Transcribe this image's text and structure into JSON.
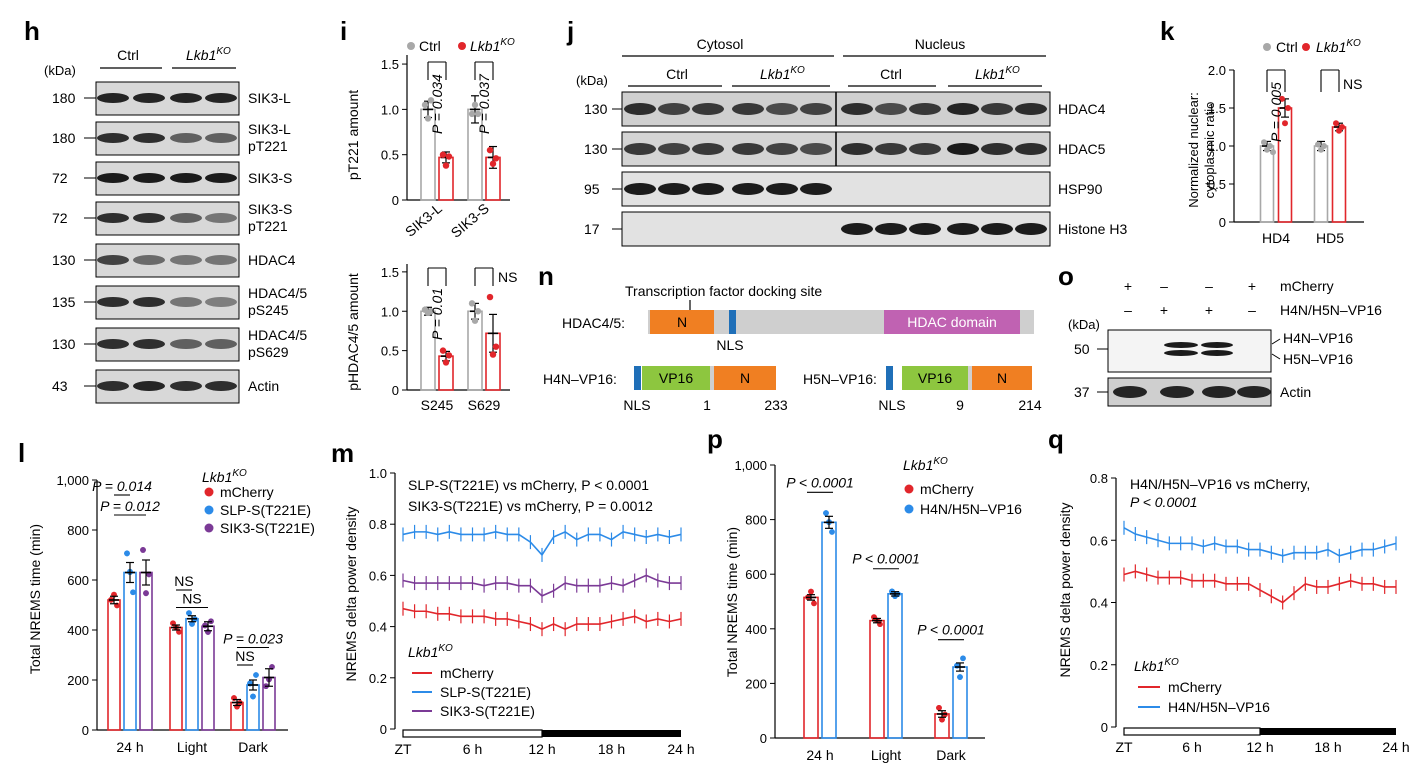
{
  "colors": {
    "red": "#e1262b",
    "blue": "#2c8be8",
    "purple": "#7b3a96",
    "grey": "#a8a8a8",
    "orange": "#f07f22",
    "green": "#8dc63f",
    "magenta": "#c062b2",
    "nls": "#1f6fb8",
    "domain_grey": "#cfcfcf"
  },
  "labels": {
    "h": "h",
    "i": "i",
    "j": "j",
    "k": "k",
    "l": "l",
    "m": "m",
    "n": "n",
    "o": "o",
    "p": "p",
    "q": "q"
  },
  "blot_h": {
    "kda": "(kDa)",
    "ctrl": "Ctrl",
    "ko": "Lkb1",
    "ko_sup": "KO",
    "rows": [
      {
        "mw": "180",
        "label": "SIK3-L",
        "label2": ""
      },
      {
        "mw": "180",
        "label": "SIK3-L",
        "label2": "pT221"
      },
      {
        "mw": "72",
        "label": "SIK3-S",
        "label2": ""
      },
      {
        "mw": "72",
        "label": "SIK3-S",
        "label2": "pT221"
      },
      {
        "mw": "130",
        "label": "HDAC4",
        "label2": ""
      },
      {
        "mw": "135",
        "label": "HDAC4/5",
        "label2": "pS245"
      },
      {
        "mw": "130",
        "label": "HDAC4/5",
        "label2": "pS629"
      },
      {
        "mw": "43",
        "label": "Actin",
        "label2": ""
      }
    ]
  },
  "panel_i": {
    "legend": {
      "ctrl": "Ctrl",
      "ko": "Lkb1",
      "ko_sup": "KO"
    },
    "top": {
      "ylabel": "pT221 amount",
      "yticks": [
        "0",
        "0.5",
        "1.0",
        "1.5"
      ],
      "categories": [
        "SIK3-L",
        "SIK3-S"
      ],
      "ctrl": [
        1.0,
        1.0
      ],
      "ko": [
        0.47,
        0.47
      ],
      "p": [
        "P = 0.034",
        "P = 0.037"
      ]
    },
    "bottom": {
      "ylabel": "pHDAC4/5 amount",
      "yticks": [
        "0",
        "0.5",
        "1.0",
        "1.5"
      ],
      "categories": [
        "S245",
        "S629"
      ],
      "ctrl": [
        1.0,
        1.0
      ],
      "ko": [
        0.43,
        0.72
      ],
      "p": [
        "P = 0.01",
        "NS"
      ]
    }
  },
  "blot_j": {
    "kda": "(kDa)",
    "cytosol": "Cytosol",
    "nucleus": "Nucleus",
    "ctrl": "Ctrl",
    "ko": "Lkb1",
    "ko_sup": "KO",
    "rows": [
      {
        "mw": "130",
        "label": "HDAC4"
      },
      {
        "mw": "130",
        "label": "HDAC5"
      },
      {
        "mw": "95",
        "label": "HSP90"
      },
      {
        "mw": "17",
        "label": "Histone H3"
      }
    ]
  },
  "panel_k": {
    "legend": {
      "ctrl": "Ctrl",
      "ko": "Lkb1",
      "ko_sup": "KO"
    },
    "ylabel1": "Normalized nuclear:",
    "ylabel2": "cytoplasmic ratio",
    "yticks": [
      "0",
      "0.5",
      "1.0",
      "1.5",
      "2.0"
    ],
    "categories": [
      "HD4",
      "HD5"
    ],
    "ctrl": [
      1.0,
      1.0
    ],
    "ko": [
      1.5,
      1.25
    ],
    "p": [
      "P = 0.005",
      "NS"
    ]
  },
  "panel_n": {
    "docking": "Transcription factor docking site",
    "hdac45": "HDAC4/5:",
    "n": "N",
    "hdac_domain": "HDAC domain",
    "nls": "NLS",
    "h4n": "H4N–VP16:",
    "h5n": "H5N–VP16:",
    "vp16": "VP16",
    "h4_start": "1",
    "h4_end": "233",
    "h5_start": "9",
    "h5_end": "214"
  },
  "blot_o": {
    "plus": "+",
    "minus": "–",
    "mcherry": "mCherry",
    "vp16": "H4N/H5N–VP16",
    "kda": "(kDa)",
    "mw50": "50",
    "mw37": "37",
    "h4n": "H4N–VP16",
    "h5n": "H5N–VP16",
    "actin": "Actin"
  },
  "panel_l": {
    "ylabel": "Total NREMS time (min)",
    "yticks": [
      "0",
      "200",
      "400",
      "600",
      "800",
      "1,000"
    ],
    "legend_title": "Lkb1",
    "legend_sup": "KO",
    "series_names": [
      "mCherry",
      "SLP-S(T221E)",
      "SIK3-S(T221E)"
    ],
    "categories": [
      "24 h",
      "Light",
      "Dark"
    ],
    "values": [
      [
        520,
        410,
        110
      ],
      [
        630,
        445,
        180
      ],
      [
        630,
        415,
        210
      ]
    ],
    "p": [
      "P = 0.014",
      "P = 0.012",
      "NS",
      "NS",
      "P = 0.023",
      "NS"
    ]
  },
  "panel_m": {
    "ylabel": "NREMS delta power density",
    "yticks": [
      "0",
      "0.2",
      "0.4",
      "0.6",
      "0.8",
      "1.0"
    ],
    "xticks": [
      "ZT",
      "6 h",
      "12 h",
      "18 h",
      "24 h"
    ],
    "stat1": "SLP-S(T221E) vs mCherry, P < 0.0001",
    "stat2": "SIK3-S(T221E) vs mCherry, P = 0.0012",
    "legend_title": "Lkb1",
    "legend_sup": "KO",
    "series_names": [
      "mCherry",
      "SLP-S(T221E)",
      "SIK3-S(T221E)"
    ],
    "series": [
      [
        0.47,
        0.46,
        0.46,
        0.45,
        0.45,
        0.44,
        0.44,
        0.44,
        0.43,
        0.43,
        0.42,
        0.41,
        0.39,
        0.41,
        0.39,
        0.41,
        0.41,
        0.41,
        0.42,
        0.43,
        0.44,
        0.42,
        0.43,
        0.42,
        0.43
      ],
      [
        0.76,
        0.77,
        0.77,
        0.76,
        0.77,
        0.76,
        0.76,
        0.76,
        0.77,
        0.76,
        0.76,
        0.73,
        0.68,
        0.75,
        0.77,
        0.74,
        0.76,
        0.76,
        0.74,
        0.77,
        0.76,
        0.75,
        0.76,
        0.75,
        0.76
      ],
      [
        0.58,
        0.57,
        0.57,
        0.57,
        0.57,
        0.57,
        0.57,
        0.56,
        0.57,
        0.57,
        0.56,
        0.56,
        0.52,
        0.54,
        0.57,
        0.56,
        0.56,
        0.56,
        0.57,
        0.56,
        0.58,
        0.6,
        0.58,
        0.57,
        0.57
      ]
    ]
  },
  "panel_p": {
    "ylabel": "Total NREMS time (min)",
    "yticks": [
      "0",
      "200",
      "400",
      "600",
      "800",
      "1,000"
    ],
    "legend_title": "Lkb1",
    "legend_sup": "KO",
    "series_names": [
      "mCherry",
      "H4N/H5N–VP16"
    ],
    "categories": [
      "24 h",
      "Light",
      "Dark"
    ],
    "values": [
      [
        515,
        430,
        88
      ],
      [
        790,
        528,
        260
      ]
    ],
    "p": [
      "P < 0.0001",
      "P < 0.0001",
      "P < 0.0001"
    ]
  },
  "panel_q": {
    "ylabel": "NREMS delta power density",
    "yticks": [
      "0",
      "0.2",
      "0.4",
      "0.6",
      "0.8"
    ],
    "xticks": [
      "ZT",
      "6 h",
      "12 h",
      "18 h",
      "24 h"
    ],
    "stat1": "H4N/H5N–VP16 vs mCherry,",
    "stat2": "P < 0.0001",
    "legend_title": "Lkb1",
    "legend_sup": "KO",
    "series_names": [
      "mCherry",
      "H4N/H5N–VP16"
    ],
    "series": [
      [
        0.49,
        0.5,
        0.49,
        0.48,
        0.48,
        0.48,
        0.47,
        0.47,
        0.47,
        0.46,
        0.46,
        0.46,
        0.44,
        0.42,
        0.4,
        0.43,
        0.46,
        0.45,
        0.45,
        0.46,
        0.47,
        0.46,
        0.46,
        0.45,
        0.45
      ],
      [
        0.64,
        0.62,
        0.61,
        0.6,
        0.59,
        0.59,
        0.59,
        0.58,
        0.59,
        0.58,
        0.58,
        0.57,
        0.57,
        0.56,
        0.55,
        0.56,
        0.56,
        0.56,
        0.57,
        0.55,
        0.56,
        0.57,
        0.57,
        0.58,
        0.59
      ]
    ]
  }
}
